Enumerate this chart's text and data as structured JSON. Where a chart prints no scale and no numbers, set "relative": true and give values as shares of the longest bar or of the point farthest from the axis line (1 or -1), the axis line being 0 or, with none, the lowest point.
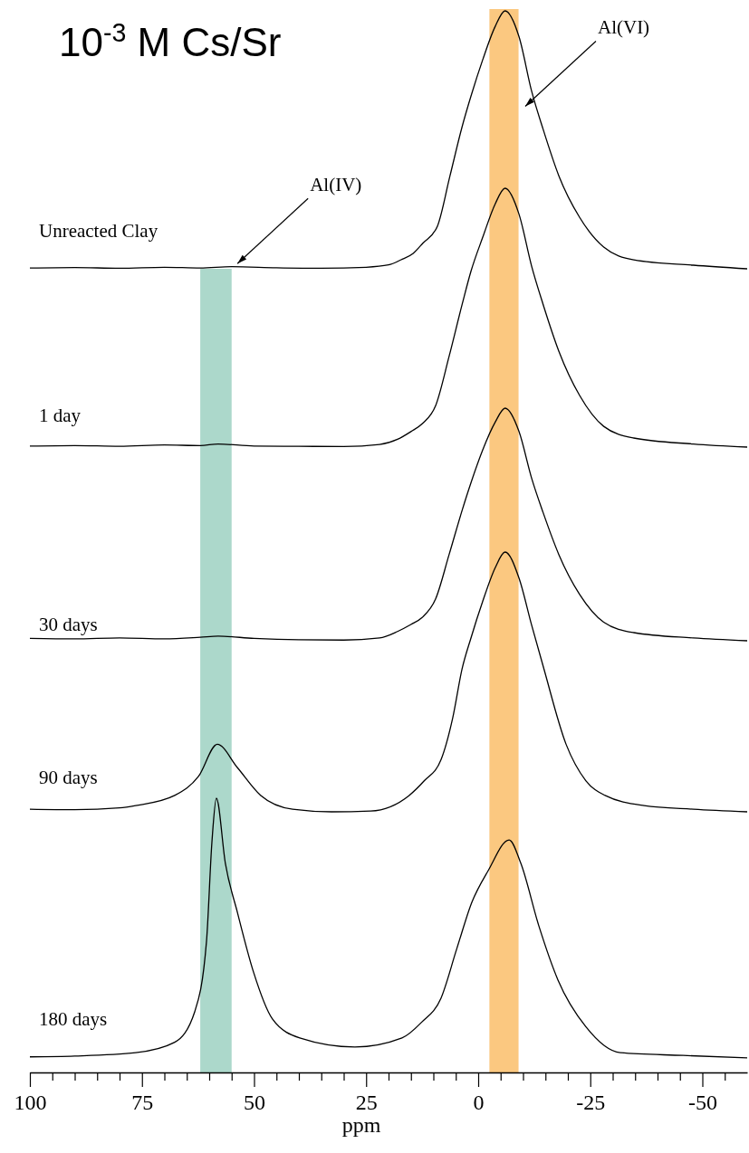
{
  "chart_data": [
    {
      "type": "line",
      "title": "10$^{-3}$ M Cs/Sr",
      "relative": true,
      "xlim": [
        100,
        -60
      ],
      "tick_labels": false,
      "series": [
        {
          "name": "Unreacted Clay",
          "color": "#000000",
          "x": [
            100,
            90,
            80,
            70,
            62,
            55,
            45,
            35,
            25,
            20,
            17.2,
            14.5,
            12.3,
            9.1,
            6.3,
            3.6,
            1.6,
            -1,
            -3.8,
            -6,
            -9.1,
            -11.9,
            -14.5,
            -18,
            -22.6,
            -28,
            -34.7,
            -48,
            -60
          ],
          "values": [
            0.003,
            0.005,
            0.002,
            0.006,
            0.003,
            0.008,
            0.004,
            0.002,
            0.006,
            0.015,
            0.035,
            0.06,
            0.1,
            0.165,
            0.36,
            0.55,
            0.67,
            0.81,
            0.94,
            1,
            0.9,
            0.69,
            0.54,
            0.36,
            0.2,
            0.084,
            0.035,
            0.014,
            0
          ]
        }
      ],
      "bands": [
        {
          "axis": "x",
          "from": -2.5,
          "to": -9,
          "color": "#fbc880"
        }
      ],
      "annotations": [
        "Al(VI)",
        "Al(IV)"
      ]
    },
    {
      "type": "line",
      "relative": true,
      "xlim": [
        100,
        -60
      ],
      "tick_labels": false,
      "series": [
        {
          "name": "1 day",
          "color": "#000000",
          "x": [
            100,
            90,
            80,
            70,
            62,
            58,
            50,
            40,
            30,
            22,
            18,
            15,
            12.5,
            9.5,
            6.5,
            3.6,
            1.6,
            -1,
            -3.8,
            -6,
            -9.1,
            -11.9,
            -14.5,
            -18,
            -22.6,
            -28,
            -34.7,
            -48,
            -60
          ],
          "values": [
            0.004,
            0.006,
            0.003,
            0.008,
            0.006,
            0.012,
            0.004,
            0.003,
            0.002,
            0.01,
            0.03,
            0.06,
            0.09,
            0.16,
            0.35,
            0.55,
            0.68,
            0.81,
            0.94,
            1,
            0.9,
            0.7,
            0.55,
            0.37,
            0.2,
            0.08,
            0.035,
            0.012,
            0
          ]
        }
      ],
      "bands": [
        {
          "axis": "x",
          "from": -2.5,
          "to": -9,
          "color": "#fbc880"
        },
        {
          "axis": "x",
          "from": 62,
          "to": 55,
          "color": "#acd8cb"
        }
      ]
    },
    {
      "type": "line",
      "relative": true,
      "xlim": [
        100,
        -60
      ],
      "tick_labels": false,
      "series": [
        {
          "name": "30 days",
          "color": "#000000",
          "x": [
            100,
            90,
            80,
            70,
            62,
            58,
            50,
            40,
            30,
            22,
            18,
            15,
            12.5,
            9.5,
            6.5,
            3.6,
            1.6,
            -1,
            -3.8,
            -6,
            -9.1,
            -11.9,
            -14.5,
            -18,
            -22.6,
            -28,
            -34.7,
            -48,
            -60
          ],
          "values": [
            0.01,
            0.008,
            0.012,
            0.008,
            0.015,
            0.02,
            0.01,
            0.004,
            0.003,
            0.012,
            0.04,
            0.07,
            0.1,
            0.18,
            0.37,
            0.56,
            0.68,
            0.82,
            0.94,
            1,
            0.9,
            0.7,
            0.55,
            0.37,
            0.2,
            0.08,
            0.035,
            0.012,
            0
          ]
        }
      ],
      "bands": [
        {
          "axis": "x",
          "from": -2.5,
          "to": -9,
          "color": "#fbc880"
        },
        {
          "axis": "x",
          "from": 62,
          "to": 55,
          "color": "#acd8cb"
        }
      ]
    },
    {
      "type": "line",
      "relative": true,
      "xlim": [
        100,
        -60
      ],
      "tick_labels": false,
      "series": [
        {
          "name": "90 days",
          "color": "#000000",
          "x": [
            100,
            90,
            80,
            76.4,
            67.7,
            62.4,
            58.2,
            53.7,
            48.5,
            41.4,
            32.7,
            24,
            15.4,
            12,
            8.3,
            5.7,
            3.6,
            1.6,
            -1,
            -3.8,
            -6,
            -9.1,
            -11.9,
            -14.5,
            -19.6,
            -24,
            -28.3,
            -37,
            -48,
            -60
          ],
          "values": [
            0.01,
            0.008,
            0.015,
            0.024,
            0.063,
            0.136,
            0.26,
            0.17,
            0.063,
            0.01,
            0,
            0.003,
            0.063,
            0.12,
            0.2,
            0.36,
            0.55,
            0.67,
            0.81,
            0.94,
            1,
            0.9,
            0.72,
            0.56,
            0.26,
            0.12,
            0.063,
            0.024,
            0.01,
            0
          ]
        }
      ],
      "bands": [
        {
          "axis": "x",
          "from": -2.5,
          "to": -9,
          "color": "#fbc880"
        },
        {
          "axis": "x",
          "from": 62,
          "to": 55,
          "color": "#acd8cb"
        }
      ]
    },
    {
      "type": "line",
      "relative": true,
      "xlim": [
        100,
        -60
      ],
      "xlabel": "ppm",
      "xticks": [
        100,
        {
          "value": 95,
          "label": null
        },
        {
          "value": 90,
          "label": null
        },
        {
          "value": 85,
          "label": null
        },
        {
          "value": 80,
          "label": null
        },
        75,
        {
          "value": 70,
          "label": null
        },
        {
          "value": 65,
          "label": null
        },
        {
          "value": 60,
          "label": null
        },
        {
          "value": 55,
          "label": null
        },
        50,
        {
          "value": 45,
          "label": null
        },
        {
          "value": 40,
          "label": null
        },
        {
          "value": 35,
          "label": null
        },
        {
          "value": 30,
          "label": null
        },
        25,
        {
          "value": 20,
          "label": null
        },
        {
          "value": 15,
          "label": null
        },
        {
          "value": 10,
          "label": null
        },
        {
          "value": 5,
          "label": null
        },
        0,
        {
          "value": -5,
          "label": null
        },
        {
          "value": -10,
          "label": null
        },
        {
          "value": -15,
          "label": null
        },
        {
          "value": -20,
          "label": null
        },
        -25,
        {
          "value": -30,
          "label": null
        },
        {
          "value": -35,
          "label": null
        },
        {
          "value": -40,
          "label": null
        },
        {
          "value": -45,
          "label": null
        },
        -50,
        {
          "value": -55,
          "label": null
        }
      ],
      "series": [
        {
          "name": "180 days",
          "color": "#000000",
          "x": [
            100,
            90,
            76.4,
            67.7,
            63.2,
            60.6,
            59.4,
            58.4,
            56.4,
            53.7,
            50.1,
            45.9,
            39.8,
            27.5,
            17,
            12.7,
            8.3,
            4.8,
            1.4,
            -2.2,
            -6.9,
            -9.5,
            -13.5,
            -17.8,
            -24,
            -31.7,
            -45.7,
            -60
          ],
          "values": [
            0.057,
            0.06,
            0.072,
            0.11,
            0.223,
            0.479,
            0.839,
            1,
            0.763,
            0.583,
            0.365,
            0.195,
            0.126,
            0.093,
            0.126,
            0.182,
            0.271,
            0.45,
            0.621,
            0.735,
            0.848,
            0.763,
            0.536,
            0.337,
            0.167,
            0.072,
            0.062,
            0.053
          ]
        }
      ],
      "bands": [
        {
          "axis": "x",
          "from": -2.5,
          "to": -9,
          "color": "#fbc880"
        },
        {
          "axis": "x",
          "from": 62,
          "to": 55,
          "color": "#acd8cb"
        }
      ]
    }
  ]
}
